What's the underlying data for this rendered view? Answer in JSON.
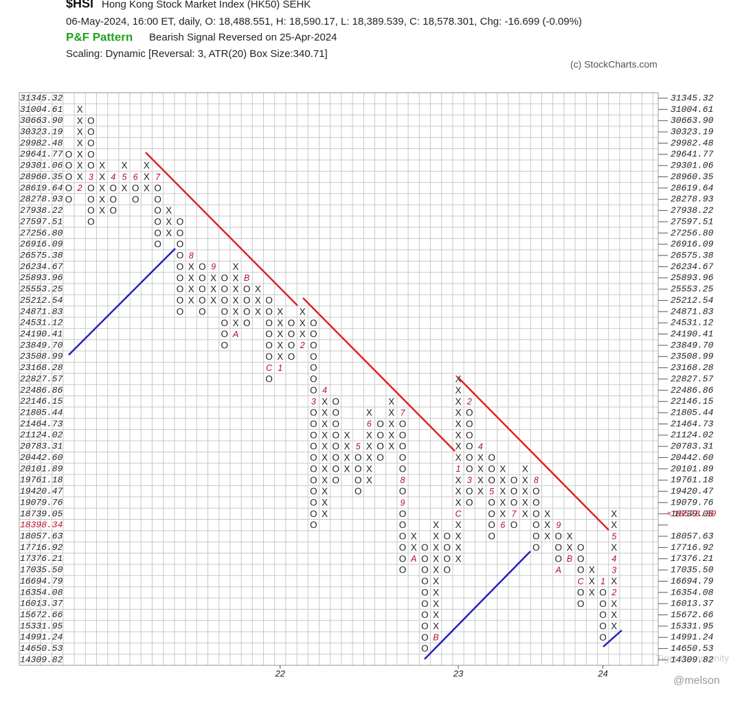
{
  "chart_data": {
    "type": "pnf",
    "symbol": "$HSI",
    "title": "Hong Kong Stock Market Index (HK50)  SEHK",
    "subtitle": "06-May-2024, 16:00 ET, daily, O: 18,488.551, H: 18,590.17, L: 18,389.539, C: 18,578.301, Chg: -16.699 (-0.09%)",
    "pattern_label": "P&F Pattern",
    "pattern_text": "Bearish Signal Reversed on 25-Apr-2024",
    "scaling": "Scaling: Dynamic [Reversal: 3, ATR(20) Box Size:340.71]",
    "credit": "(c) StockCharts.com",
    "watermark": "@melson",
    "watermark2": "Tiger Community",
    "x_labels": [
      "22",
      "23",
      "24"
    ],
    "current_level": 18398.34,
    "current_price": {
      "value": 18578.3,
      "label": "18578.30"
    },
    "levels": [
      31345.32,
      31004.61,
      {
        "value": 30663.9,
        "label": "30663.90"
      },
      30323.19,
      29982.48,
      29641.77,
      29301.06,
      28960.35,
      28619.64,
      28278.93,
      27938.22,
      27597.51,
      {
        "value": 27256.8,
        "label": "27256.80"
      },
      26916.09,
      26575.38,
      26234.67,
      25893.96,
      25553.25,
      25212.54,
      24871.83,
      24531.12,
      24190.41,
      {
        "value": 23849.7,
        "label": "23849.70"
      },
      23508.99,
      23168.28,
      22827.57,
      22486.86,
      22146.15,
      21805.44,
      21464.73,
      21124.02,
      20783.31,
      {
        "value": 20442.6,
        "label": "20442.60"
      },
      20101.89,
      19761.18,
      19420.47,
      19079.76,
      18739.05,
      18398.34,
      18057.63,
      17716.92,
      17376.21,
      {
        "value": 17035.5,
        "label": "17035.50"
      },
      16694.79,
      16354.08,
      16013.37,
      15672.66,
      15331.95,
      14991.24,
      14650.53,
      14309.82
    ],
    "columns": [
      {
        "type": "O",
        "high": 29641.77,
        "low": 28278.93,
        "months": []
      },
      {
        "type": "X",
        "high": 31004.61,
        "low": 28619.64,
        "months": [
          {
            "label": "2",
            "price": 28619.64
          }
        ]
      },
      {
        "type": "O",
        "high": 30663.9,
        "low": 27597.51,
        "months": [
          {
            "label": "3",
            "price": 28960.35
          }
        ]
      },
      {
        "type": "X",
        "high": 29301.06,
        "low": 27938.22,
        "months": []
      },
      {
        "type": "O",
        "high": 28960.35,
        "low": 27938.22,
        "months": [
          {
            "label": "4",
            "price": 28960.35
          }
        ]
      },
      {
        "type": "X",
        "high": 29301.06,
        "low": 28619.64,
        "months": [
          {
            "label": "5",
            "price": 28960.35
          }
        ]
      },
      {
        "type": "O",
        "high": 28960.35,
        "low": 28278.93,
        "months": [
          {
            "label": "6",
            "price": 28960.35
          }
        ]
      },
      {
        "type": "X",
        "high": 29301.06,
        "low": 28619.64,
        "months": []
      },
      {
        "type": "O",
        "high": 28960.35,
        "low": 26916.09,
        "months": [
          {
            "label": "7",
            "price": 28960.35
          }
        ]
      },
      {
        "type": "X",
        "high": 27938.22,
        "low": 27256.8,
        "months": []
      },
      {
        "type": "O",
        "high": 27597.51,
        "low": 24871.83,
        "months": []
      },
      {
        "type": "X",
        "high": 26575.38,
        "low": 25212.54,
        "months": [
          {
            "label": "8",
            "price": 26575.38
          }
        ]
      },
      {
        "type": "O",
        "high": 26234.67,
        "low": 24871.83,
        "months": []
      },
      {
        "type": "X",
        "high": 26234.67,
        "low": 25212.54,
        "months": [
          {
            "label": "9",
            "price": 26234.67
          }
        ]
      },
      {
        "type": "O",
        "high": 25893.96,
        "low": 23849.7,
        "months": []
      },
      {
        "type": "X",
        "high": 26234.67,
        "low": 24190.41,
        "months": [
          {
            "label": "A",
            "price": 24190.41
          }
        ]
      },
      {
        "type": "O",
        "high": 25893.96,
        "low": 24531.12,
        "months": [
          {
            "label": "B",
            "price": 25893.96
          }
        ]
      },
      {
        "type": "X",
        "high": 25553.25,
        "low": 24871.83,
        "months": []
      },
      {
        "type": "O",
        "high": 25212.54,
        "low": 22827.57,
        "months": [
          {
            "label": "C",
            "price": 23168.28
          }
        ]
      },
      {
        "type": "X",
        "high": 24871.83,
        "low": 23168.28,
        "months": [
          {
            "label": "1",
            "price": 23168.28
          }
        ]
      },
      {
        "type": "O",
        "high": 24531.12,
        "low": 23508.99,
        "months": []
      },
      {
        "type": "X",
        "high": 24871.83,
        "low": 23849.7,
        "months": [
          {
            "label": "2",
            "price": 23849.7
          }
        ]
      },
      {
        "type": "O",
        "high": 24531.12,
        "low": 18398.34,
        "months": [
          {
            "label": "3",
            "price": 22146.15
          }
        ]
      },
      {
        "type": "X",
        "high": 22486.86,
        "low": 18739.05,
        "months": [
          {
            "label": "4",
            "price": 22486.86
          }
        ]
      },
      {
        "type": "O",
        "high": 22146.15,
        "low": 19761.18,
        "months": []
      },
      {
        "type": "X",
        "high": 21124.02,
        "low": 20101.89,
        "months": []
      },
      {
        "type": "O",
        "high": 20783.31,
        "low": 19420.47,
        "months": [
          {
            "label": "5",
            "price": 20783.31
          }
        ]
      },
      {
        "type": "X",
        "high": 21805.44,
        "low": 19761.18,
        "months": [
          {
            "label": "6",
            "price": 21464.73
          }
        ]
      },
      {
        "type": "O",
        "high": 21464.73,
        "low": 20442.6,
        "months": []
      },
      {
        "type": "X",
        "high": 22146.15,
        "low": 20783.31,
        "months": []
      },
      {
        "type": "O",
        "high": 21805.44,
        "low": 17035.5,
        "months": [
          {
            "label": "7",
            "price": 21805.44
          },
          {
            "label": "8",
            "price": 19761.18
          },
          {
            "label": "9",
            "price": 19079.76
          }
        ]
      },
      {
        "type": "X",
        "high": 18057.63,
        "low": 17376.21,
        "months": [
          {
            "label": "A",
            "price": 17376.21
          }
        ]
      },
      {
        "type": "O",
        "high": 17716.92,
        "low": 14650.53,
        "months": []
      },
      {
        "type": "X",
        "high": 18398.34,
        "low": 14991.24,
        "months": [
          {
            "label": "B",
            "price": 14991.24
          }
        ]
      },
      {
        "type": "O",
        "high": 18057.63,
        "low": 17035.5,
        "months": []
      },
      {
        "type": "X",
        "high": 22827.57,
        "low": 17376.21,
        "months": [
          {
            "label": "C",
            "price": 18739.05
          },
          {
            "label": "1",
            "price": 20101.89
          }
        ]
      },
      {
        "type": "O",
        "high": 22146.15,
        "low": 19079.76,
        "months": [
          {
            "label": "2",
            "price": 22146.15
          },
          {
            "label": "3",
            "price": 19761.18
          }
        ]
      },
      {
        "type": "X",
        "high": 20783.31,
        "low": 19420.47,
        "months": [
          {
            "label": "4",
            "price": 20783.31
          }
        ]
      },
      {
        "type": "O",
        "high": 20442.6,
        "low": 18057.63,
        "months": [
          {
            "label": "5",
            "price": 19420.47
          }
        ]
      },
      {
        "type": "X",
        "high": 20101.89,
        "low": 18398.34,
        "months": [
          {
            "label": "6",
            "price": 18398.34
          }
        ]
      },
      {
        "type": "O",
        "high": 19761.18,
        "low": 18398.34,
        "months": [
          {
            "label": "7",
            "price": 18739.05
          }
        ]
      },
      {
        "type": "X",
        "high": 20101.89,
        "low": 18739.05,
        "months": []
      },
      {
        "type": "O",
        "high": 19761.18,
        "low": 17716.92,
        "months": [
          {
            "label": "8",
            "price": 19761.18
          }
        ]
      },
      {
        "type": "X",
        "high": 18739.05,
        "low": 18057.63,
        "months": []
      },
      {
        "type": "O",
        "high": 18398.34,
        "low": 17035.5,
        "months": [
          {
            "label": "9",
            "price": 18398.34
          },
          {
            "label": "A",
            "price": 17035.5
          }
        ]
      },
      {
        "type": "X",
        "high": 18057.63,
        "low": 17376.21,
        "months": [
          {
            "label": "B",
            "price": 17376.21
          }
        ]
      },
      {
        "type": "O",
        "high": 17716.92,
        "low": 16013.37,
        "months": [
          {
            "label": "C",
            "price": 16694.79
          }
        ]
      },
      {
        "type": "X",
        "high": 17035.5,
        "low": 16354.08,
        "months": []
      },
      {
        "type": "O",
        "high": 16694.79,
        "low": 14991.24,
        "months": [
          {
            "label": "1",
            "price": 16694.79
          }
        ]
      },
      {
        "type": "X",
        "high": 18739.05,
        "low": 15331.95,
        "months": [
          {
            "label": "2",
            "price": 16354.08
          },
          {
            "label": "3",
            "price": 17035.5
          },
          {
            "label": "4",
            "price": 17376.21
          },
          {
            "label": "5",
            "price": 18057.63
          }
        ]
      }
    ]
  }
}
